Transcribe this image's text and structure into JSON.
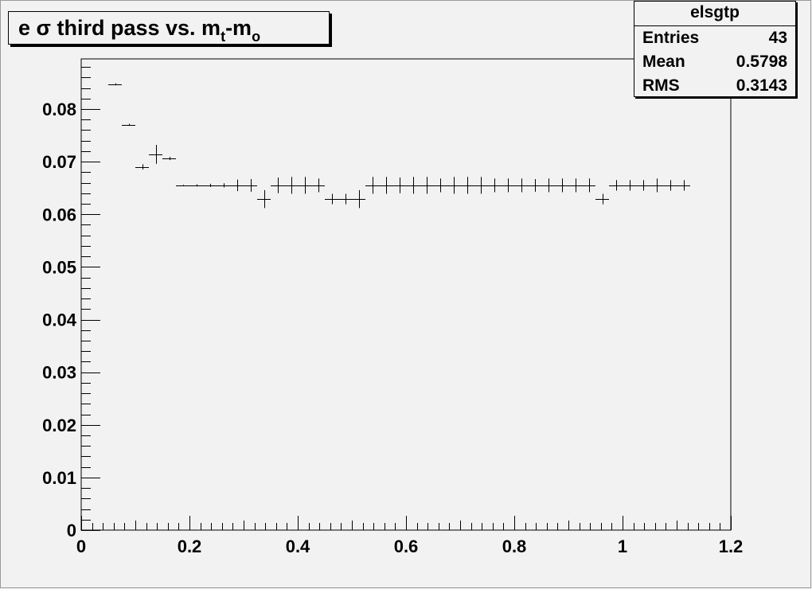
{
  "chart_data": {
    "type": "scatter",
    "title": {
      "prefix": "e σ third pass vs. m",
      "sub1": "t",
      "mid": "-m",
      "sub2": "o"
    },
    "xlim": [
      0,
      1.2
    ],
    "ylim": [
      0,
      0.089
    ],
    "xticks": [
      "0",
      "0.2",
      "0.4",
      "0.6",
      "0.8",
      "1",
      "1.2"
    ],
    "xtick_values": [
      0,
      0.2,
      0.4,
      0.6,
      0.8,
      1.0,
      1.2
    ],
    "yticks": [
      "0",
      "0.01",
      "0.02",
      "0.03",
      "0.04",
      "0.05",
      "0.06",
      "0.07",
      "0.08"
    ],
    "ytick_values": [
      0,
      0.01,
      0.02,
      0.03,
      0.04,
      0.05,
      0.06,
      0.07,
      0.08
    ],
    "bin_width": 0.025,
    "x": [
      0.0625,
      0.0875,
      0.1125,
      0.1375,
      0.1625,
      0.1875,
      0.2125,
      0.2375,
      0.2625,
      0.2875,
      0.3125,
      0.3375,
      0.3625,
      0.3875,
      0.4125,
      0.4375,
      0.4625,
      0.4875,
      0.5125,
      0.5375,
      0.5625,
      0.5875,
      0.6125,
      0.6375,
      0.6625,
      0.6875,
      0.7125,
      0.7375,
      0.7625,
      0.7875,
      0.8125,
      0.8375,
      0.8625,
      0.8875,
      0.9125,
      0.9375,
      0.9625,
      0.9875,
      1.0125,
      1.0375,
      1.0625,
      1.0875,
      1.1125
    ],
    "y": [
      0.0847,
      0.077,
      0.069,
      0.0714,
      0.0706,
      0.0655,
      0.0655,
      0.0655,
      0.0655,
      0.0655,
      0.0655,
      0.0629,
      0.0655,
      0.0655,
      0.0655,
      0.0655,
      0.0629,
      0.0629,
      0.0629,
      0.0655,
      0.0655,
      0.0655,
      0.0655,
      0.0655,
      0.0655,
      0.0655,
      0.0655,
      0.0655,
      0.0655,
      0.0655,
      0.0655,
      0.0655,
      0.0655,
      0.0655,
      0.0655,
      0.0655,
      0.0629,
      0.0655,
      0.0655,
      0.0655,
      0.0655,
      0.0655,
      0.0655
    ],
    "yerr": [
      0.0002,
      0.0002,
      0.0005,
      0.0018,
      0.0003,
      0.0001,
      0.0002,
      0.0003,
      0.0004,
      0.0011,
      0.0012,
      0.0017,
      0.0015,
      0.0016,
      0.0016,
      0.0013,
      0.001,
      0.001,
      0.0017,
      0.0016,
      0.0016,
      0.0015,
      0.0016,
      0.0016,
      0.0013,
      0.0016,
      0.0016,
      0.0016,
      0.0013,
      0.0013,
      0.0013,
      0.0012,
      0.0013,
      0.0013,
      0.0013,
      0.0013,
      0.001,
      0.001,
      0.001,
      0.001,
      0.0013,
      0.001,
      0.001
    ],
    "grid": false,
    "legend": "top-right",
    "stats": {
      "name": "elsgtp",
      "entries_label": "Entries",
      "entries": "43",
      "mean_label": "Mean",
      "mean": "0.5798",
      "rms_label": "RMS",
      "rms": "0.3143"
    }
  }
}
